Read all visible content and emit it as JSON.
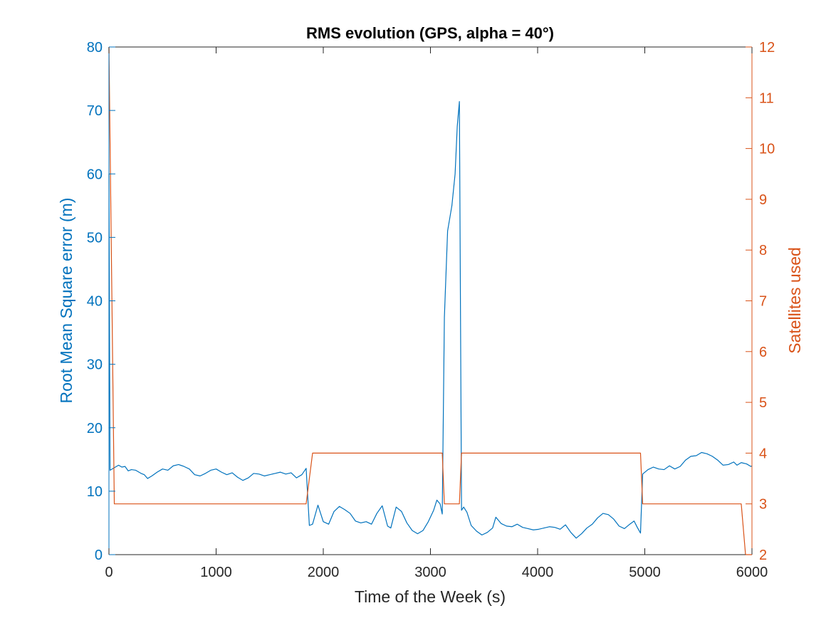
{
  "colors": {
    "left_axis": "#0072BD",
    "right_axis": "#D95319",
    "x_axis": "#262626",
    "background": "#ffffff"
  },
  "chart_data": {
    "type": "line",
    "title": "RMS evolution (GPS, alpha = 40°)",
    "xlabel": "Time of the Week (s)",
    "ylabel_left": "Root Mean Square error (m)",
    "ylabel_right": "Satellites used",
    "xlim": [
      0,
      6000
    ],
    "ylim_left": [
      0,
      80
    ],
    "ylim_right": [
      2,
      12
    ],
    "x_ticks": [
      "0",
      "1000",
      "2000",
      "3000",
      "4000",
      "5000",
      "6000"
    ],
    "y_left_ticks": [
      "0",
      "10",
      "20",
      "30",
      "40",
      "50",
      "60",
      "70",
      "80"
    ],
    "y_right_ticks": [
      "2",
      "3",
      "4",
      "5",
      "6",
      "7",
      "8",
      "9",
      "10",
      "11",
      "12"
    ],
    "grid": false,
    "series": [
      {
        "axis": "left",
        "color": "#0072BD",
        "points": [
          [
            0,
            60
          ],
          [
            10,
            13.3
          ],
          [
            60,
            13.8
          ],
          [
            90,
            14.1
          ],
          [
            120,
            13.8
          ],
          [
            150,
            13.9
          ],
          [
            180,
            13.2
          ],
          [
            210,
            13.4
          ],
          [
            250,
            13.3
          ],
          [
            300,
            12.8
          ],
          [
            330,
            12.6
          ],
          [
            360,
            12.0
          ],
          [
            400,
            12.4
          ],
          [
            450,
            13.0
          ],
          [
            500,
            13.5
          ],
          [
            550,
            13.3
          ],
          [
            600,
            14.0
          ],
          [
            650,
            14.2
          ],
          [
            700,
            13.9
          ],
          [
            750,
            13.5
          ],
          [
            800,
            12.6
          ],
          [
            850,
            12.4
          ],
          [
            900,
            12.8
          ],
          [
            950,
            13.3
          ],
          [
            1000,
            13.5
          ],
          [
            1050,
            13.0
          ],
          [
            1100,
            12.6
          ],
          [
            1150,
            12.9
          ],
          [
            1200,
            12.2
          ],
          [
            1250,
            11.7
          ],
          [
            1300,
            12.1
          ],
          [
            1350,
            12.8
          ],
          [
            1400,
            12.7
          ],
          [
            1450,
            12.4
          ],
          [
            1500,
            12.6
          ],
          [
            1550,
            12.8
          ],
          [
            1600,
            13.0
          ],
          [
            1650,
            12.7
          ],
          [
            1700,
            12.9
          ],
          [
            1750,
            12.1
          ],
          [
            1800,
            12.6
          ],
          [
            1840,
            13.6
          ],
          [
            1870,
            4.6
          ],
          [
            1900,
            4.8
          ],
          [
            1950,
            7.8
          ],
          [
            2000,
            5.2
          ],
          [
            2050,
            4.8
          ],
          [
            2100,
            6.8
          ],
          [
            2150,
            7.6
          ],
          [
            2200,
            7.1
          ],
          [
            2250,
            6.5
          ],
          [
            2300,
            5.3
          ],
          [
            2350,
            5.0
          ],
          [
            2400,
            5.2
          ],
          [
            2450,
            4.8
          ],
          [
            2500,
            6.5
          ],
          [
            2550,
            7.7
          ],
          [
            2600,
            4.5
          ],
          [
            2630,
            4.2
          ],
          [
            2680,
            7.5
          ],
          [
            2730,
            6.8
          ],
          [
            2780,
            5.0
          ],
          [
            2830,
            3.8
          ],
          [
            2880,
            3.3
          ],
          [
            2930,
            3.8
          ],
          [
            2980,
            5.2
          ],
          [
            3030,
            7.0
          ],
          [
            3060,
            8.6
          ],
          [
            3090,
            8.0
          ],
          [
            3110,
            6.4
          ],
          [
            3130,
            37.4
          ],
          [
            3160,
            51
          ],
          [
            3200,
            55
          ],
          [
            3230,
            60
          ],
          [
            3250,
            67.5
          ],
          [
            3270,
            71.4
          ],
          [
            3290,
            7.0
          ],
          [
            3310,
            7.5
          ],
          [
            3340,
            6.7
          ],
          [
            3380,
            4.6
          ],
          [
            3430,
            3.7
          ],
          [
            3480,
            3.1
          ],
          [
            3530,
            3.5
          ],
          [
            3580,
            4.2
          ],
          [
            3610,
            5.9
          ],
          [
            3660,
            4.9
          ],
          [
            3710,
            4.5
          ],
          [
            3760,
            4.4
          ],
          [
            3810,
            4.8
          ],
          [
            3860,
            4.3
          ],
          [
            3910,
            4.1
          ],
          [
            3960,
            3.9
          ],
          [
            4010,
            4.0
          ],
          [
            4060,
            4.2
          ],
          [
            4110,
            4.4
          ],
          [
            4160,
            4.3
          ],
          [
            4210,
            4.0
          ],
          [
            4260,
            4.7
          ],
          [
            4310,
            3.5
          ],
          [
            4360,
            2.6
          ],
          [
            4410,
            3.3
          ],
          [
            4460,
            4.2
          ],
          [
            4510,
            4.8
          ],
          [
            4560,
            5.8
          ],
          [
            4610,
            6.5
          ],
          [
            4660,
            6.3
          ],
          [
            4710,
            5.6
          ],
          [
            4760,
            4.5
          ],
          [
            4810,
            4.1
          ],
          [
            4860,
            4.8
          ],
          [
            4900,
            5.3
          ],
          [
            4930,
            4.3
          ],
          [
            4960,
            3.4
          ],
          [
            4980,
            12.7
          ],
          [
            5030,
            13.4
          ],
          [
            5080,
            13.8
          ],
          [
            5130,
            13.5
          ],
          [
            5180,
            13.4
          ],
          [
            5230,
            14.0
          ],
          [
            5280,
            13.5
          ],
          [
            5330,
            13.9
          ],
          [
            5380,
            14.9
          ],
          [
            5430,
            15.5
          ],
          [
            5480,
            15.6
          ],
          [
            5530,
            16.1
          ],
          [
            5580,
            15.9
          ],
          [
            5630,
            15.5
          ],
          [
            5680,
            14.9
          ],
          [
            5730,
            14.1
          ],
          [
            5780,
            14.2
          ],
          [
            5830,
            14.6
          ],
          [
            5860,
            14.1
          ],
          [
            5900,
            14.5
          ],
          [
            5950,
            14.3
          ],
          [
            5990,
            13.9
          ],
          [
            6000,
            14.0
          ]
        ]
      },
      {
        "axis": "right",
        "color": "#D95319",
        "points": [
          [
            0,
            12
          ],
          [
            50,
            3
          ],
          [
            1840,
            3
          ],
          [
            1900,
            4
          ],
          [
            3110,
            4
          ],
          [
            3130,
            3
          ],
          [
            3270,
            3
          ],
          [
            3290,
            4
          ],
          [
            4960,
            4
          ],
          [
            4980,
            3
          ],
          [
            5900,
            3
          ],
          [
            5940,
            2
          ],
          [
            6000,
            2
          ]
        ]
      }
    ]
  }
}
